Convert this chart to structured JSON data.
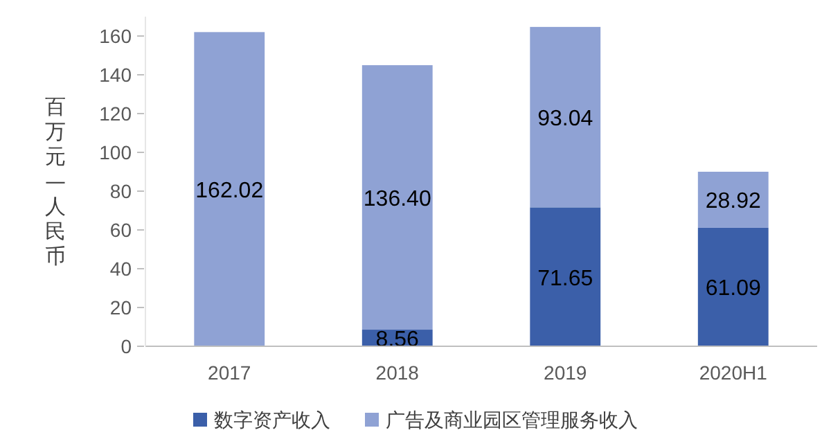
{
  "chart_data": {
    "type": "bar",
    "stacked": true,
    "ylabel": "百万元—人民币",
    "categories": [
      "2017",
      "2018",
      "2019",
      "2020H1"
    ],
    "ylim": [
      0,
      170
    ],
    "yticks": [
      0,
      20,
      40,
      60,
      80,
      100,
      120,
      140,
      160
    ],
    "legend": "bottom",
    "series": [
      {
        "name": "数字资产收入",
        "color": "#3b5fa9",
        "values": [
          0,
          8.56,
          71.65,
          61.09
        ],
        "value_labels": [
          null,
          "8.56",
          "71.65",
          "61.09"
        ]
      },
      {
        "name": "广告及商业园区管理服务收入",
        "color": "#8fa2d4",
        "values": [
          162.02,
          136.4,
          93.04,
          28.92
        ],
        "value_labels": [
          "162.02",
          "136.40",
          "93.04",
          "28.92"
        ]
      }
    ]
  }
}
